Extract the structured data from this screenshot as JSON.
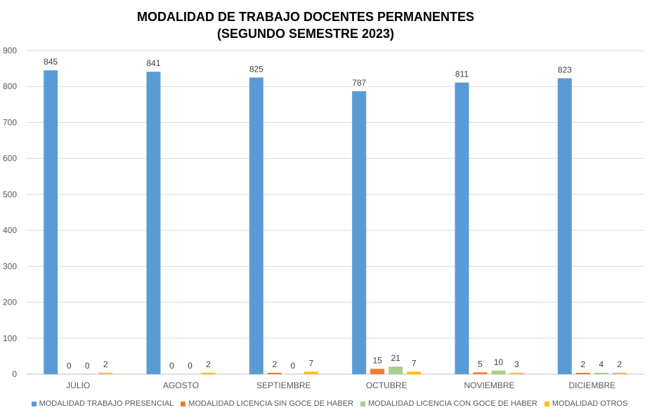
{
  "chart_data": {
    "type": "bar",
    "title": "MODALIDAD DE TRABAJO DOCENTES PERMANENTES",
    "subtitle": "(SEGUNDO SEMESTRE 2023)",
    "categories": [
      "JULIO",
      "AGOSTO",
      "SEPTIEMBRE",
      "OCTUBRE",
      "NOVIEMBRE",
      "DICIEMBRE"
    ],
    "series": [
      {
        "name": "MODALIDAD TRABAJO PRESENCIAL",
        "color": "#5B9BD5",
        "values": [
          845,
          841,
          825,
          787,
          811,
          823
        ]
      },
      {
        "name": "MODALIDAD LICENCIA SIN GOCE DE HABER",
        "color": "#ED7D31",
        "values": [
          0,
          0,
          2,
          15,
          5,
          2
        ]
      },
      {
        "name": "MODALIDAD LICENCIA CON GOCE DE HABER",
        "color": "#A5D08F",
        "values": [
          0,
          0,
          0,
          21,
          10,
          4
        ]
      },
      {
        "name": "MODALIDAD OTROS",
        "color": "#FFC000",
        "values": [
          2,
          2,
          7,
          7,
          3,
          2
        ]
      }
    ],
    "yticks": [
      "0",
      "100",
      "200",
      "300",
      "400",
      "500",
      "600",
      "700",
      "800",
      "900"
    ],
    "ylim": [
      0,
      900
    ],
    "grid": true,
    "legend": "bottom",
    "data_labels": true
  }
}
